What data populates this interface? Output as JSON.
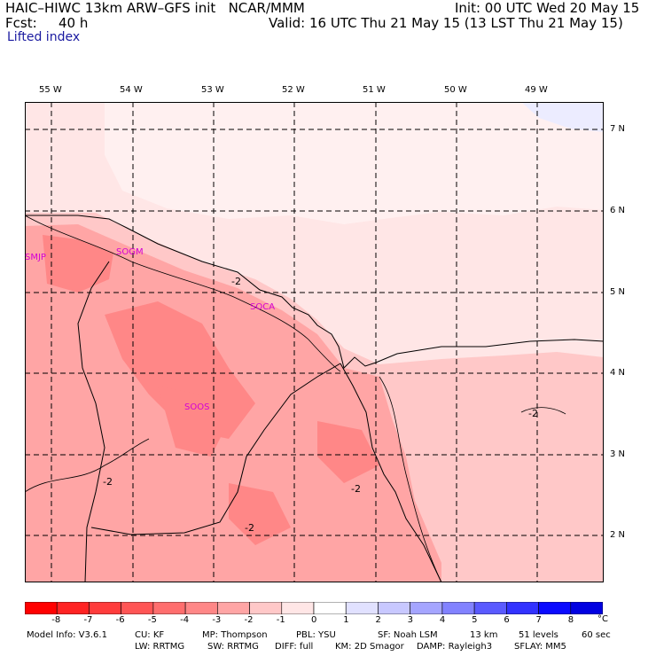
{
  "header": {
    "title": "HAIC–HIWC 13km ARW–GFS init   NCAR/MMM",
    "init": "Init: 00 UTC Wed 20 May 15",
    "fcst_label": "Fcst:",
    "fcst_value": "40 h",
    "valid": "Valid: 16 UTC Thu 21 May 15 (13 LST Thu 21 May 15)",
    "field": "Lifted index"
  },
  "map": {
    "longitudes": [
      "55 W",
      "54 W",
      "53 W",
      "52 W",
      "51 W",
      "50 W",
      "49 W"
    ],
    "latitudes": [
      "7 N",
      "6 N",
      "5 N",
      "4 N",
      "3 N",
      "2 N"
    ],
    "stations": [
      "SMJP",
      "SOGM",
      "SOCA",
      "SOOS"
    ],
    "contour_label": "-2"
  },
  "colorbar": {
    "ticks": [
      "-8",
      "-7",
      "-6",
      "-5",
      "-4",
      "-3",
      "-2",
      "-1",
      "0",
      "1",
      "2",
      "3",
      "4",
      "5",
      "6",
      "7",
      "8"
    ],
    "unit": "°C",
    "colors": [
      "#ff0000",
      "#ff2323",
      "#ff3c3c",
      "#ff5555",
      "#ff6e6e",
      "#ff8787",
      "#ffa5a5",
      "#ffc8c8",
      "#ffe6e6",
      "#ffffff",
      "#e1e1ff",
      "#c8c8ff",
      "#a5a5ff",
      "#8282ff",
      "#5a5aff",
      "#3232ff",
      "#0a0aff",
      "#0000e1"
    ]
  },
  "footer": {
    "line1": [
      "Model Info: V3.6.1",
      "CU: KF",
      "MP: Thompson",
      "PBL: YSU",
      "SF: Noah LSM",
      "13 km",
      "51 levels",
      "60 sec"
    ],
    "line2": [
      "LW: RRTMG",
      "SW: RRTMG",
      "DIFF: full",
      "KM: 2D Smagor",
      "DAMP: Rayleigh3",
      "SFLAY: MM5"
    ]
  }
}
